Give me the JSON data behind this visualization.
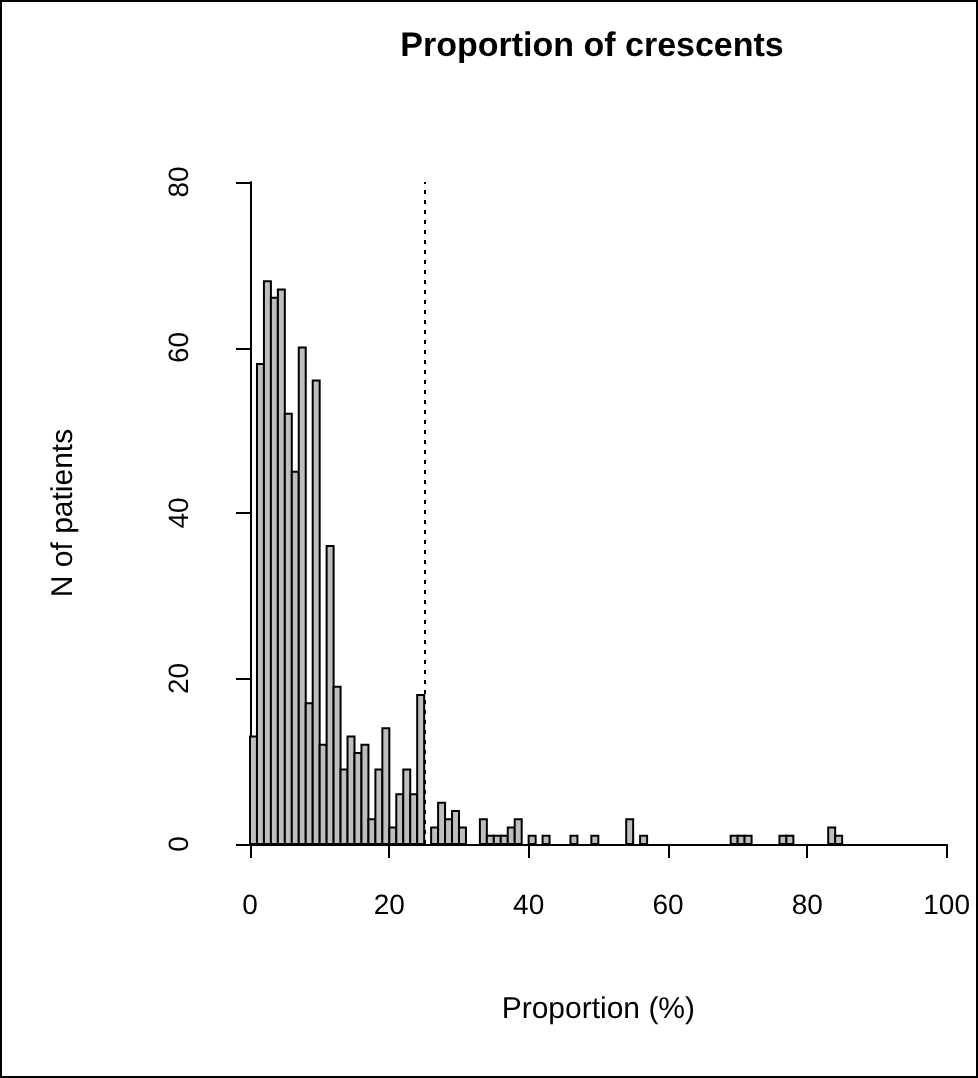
{
  "chart_data": {
    "type": "histogram",
    "title": "Proportion of crescents",
    "xlabel": "Proportion (%)",
    "ylabel": "N of patients",
    "bins": [
      0,
      1,
      2,
      3,
      4,
      5,
      6,
      7,
      8,
      9,
      10,
      11,
      12,
      13,
      14,
      15,
      16,
      17,
      18,
      19,
      20,
      21,
      22,
      23,
      24,
      25,
      26,
      27,
      28,
      29,
      30,
      31,
      32,
      33,
      34,
      35,
      36,
      37,
      38,
      39,
      40,
      41,
      42,
      43,
      44,
      45,
      46,
      47,
      48,
      49,
      50,
      51,
      52,
      53,
      54,
      55,
      56,
      57,
      58,
      59,
      60,
      61,
      62,
      63,
      64,
      65,
      66,
      67,
      68,
      69,
      70,
      71,
      72,
      73,
      74,
      75,
      76,
      77,
      78,
      79,
      80,
      81,
      82,
      83,
      84,
      85,
      86,
      87,
      88,
      89,
      90,
      91,
      92,
      93,
      94,
      95,
      96,
      97,
      98,
      99,
      100
    ],
    "values": [
      13,
      58,
      68,
      66,
      67,
      52,
      45,
      60,
      17,
      56,
      12,
      36,
      19,
      9,
      13,
      11,
      12,
      3,
      9,
      14,
      2,
      6,
      9,
      6,
      18,
      0,
      2,
      5,
      3,
      4,
      2,
      0,
      0,
      3,
      1,
      1,
      1,
      2,
      3,
      0,
      1,
      0,
      1,
      0,
      0,
      0,
      1,
      0,
      0,
      1,
      0,
      0,
      0,
      0,
      3,
      0,
      1,
      0,
      0,
      0,
      0,
      0,
      0,
      0,
      0,
      0,
      0,
      0,
      0,
      1,
      1,
      1,
      0,
      0,
      0,
      0,
      1,
      1,
      0,
      0,
      0,
      0,
      0,
      2,
      1,
      0,
      0,
      0,
      0,
      0,
      0,
      0,
      0,
      0,
      0,
      0,
      0,
      0,
      0,
      0
    ],
    "color": "#bebebe",
    "xlim": [
      0,
      100
    ],
    "xticks": [
      0,
      20,
      40,
      60,
      80,
      100
    ],
    "ylim": [
      0,
      80
    ],
    "yticks": [
      0,
      20,
      40,
      60,
      80
    ],
    "ref_lines": [
      {
        "axis": "x",
        "value": 25,
        "line_style": "dotted",
        "color": "#000000"
      }
    ]
  }
}
